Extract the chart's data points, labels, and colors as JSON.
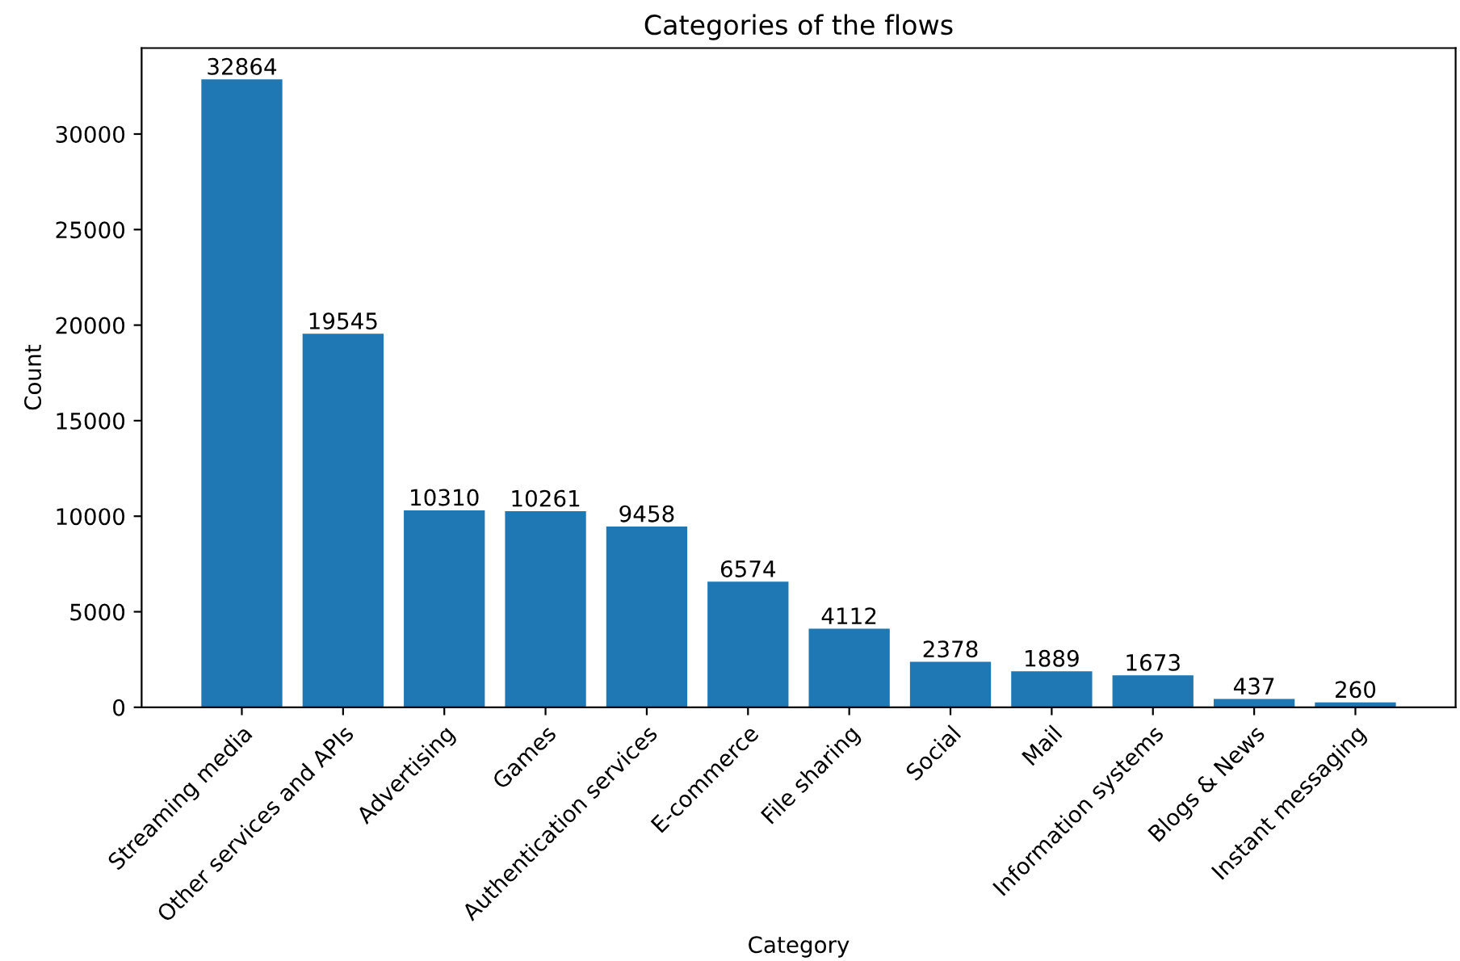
{
  "chart_data": {
    "type": "bar",
    "title": "Categories of the flows",
    "xlabel": "Category",
    "ylabel": "Count",
    "categories": [
      "Streaming media",
      "Other services and APIs",
      "Advertising",
      "Games",
      "Authentication services",
      "E-commerce",
      "File sharing",
      "Social",
      "Mail",
      "Information systems",
      "Blogs & News",
      "Instant messaging"
    ],
    "values": [
      32864,
      19545,
      10310,
      10261,
      9458,
      6574,
      4112,
      2378,
      1889,
      1673,
      437,
      260
    ],
    "color": "#1f77b4",
    "ylim": [
      0,
      34500
    ],
    "yticks": [
      0,
      5000,
      10000,
      15000,
      20000,
      25000,
      30000
    ],
    "data_labels": true,
    "grid": false,
    "legend": false
  }
}
